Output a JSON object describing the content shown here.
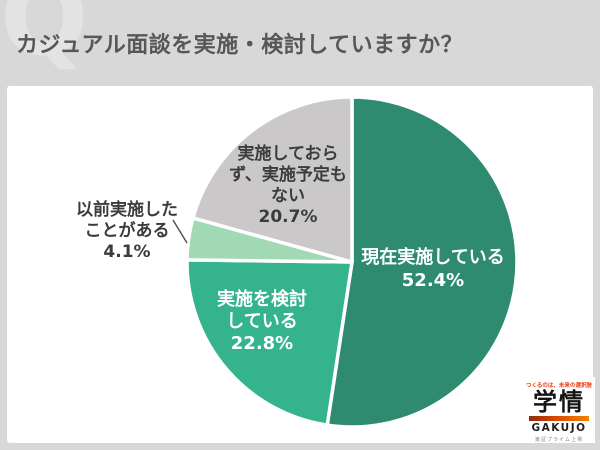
{
  "page": {
    "watermark": "Q",
    "title": "カジュアル面談を実施・検討していますか？"
  },
  "chart_data": {
    "type": "pie",
    "question": "カジュアル面談を実施・検討していますか？",
    "start_angle_deg": 0,
    "direction": "clockwise",
    "slice_border_color": "#FFFFFF",
    "slices": [
      {
        "label": "現在実施している",
        "value_pct": 52.4,
        "display": "現在実施している\n52.4%",
        "color": "#2E8B6F",
        "text_color": "#FFFFFF",
        "label_placement": "inside"
      },
      {
        "label": "実施を検討している",
        "value_pct": 22.8,
        "display": "実施を検討\nしている\n22.8%",
        "color": "#35B38C",
        "text_color": "#FFFFFF",
        "label_placement": "inside"
      },
      {
        "label": "以前実施したことがある",
        "value_pct": 4.1,
        "display": "以前実施した\nことがある\n4.1%",
        "color": "#A0D9B4",
        "text_color": "#3C3C3C",
        "label_placement": "outside"
      },
      {
        "label": "実施しておらず、実施予定もない",
        "value_pct": 20.7,
        "display": "実施しておら\nず、実施予定も\nない\n20.7%",
        "color": "#CAC8C8",
        "text_color": "#3C3C3C",
        "label_placement": "inside"
      }
    ]
  },
  "logo": {
    "tagline": "つくるのは、未来の選択肢",
    "name_jp": "学情",
    "name_en": "GAKUJO",
    "listing": "東証プライム上場"
  },
  "colors": {
    "background": "#D8D8D8",
    "watermark": "#E3E3E3",
    "title_text": "#575757",
    "panel": "#FFFFFF",
    "leader_line": "#555555",
    "logo_tagline": "#E8380D",
    "logo_accent_left": "#8F2B0E",
    "logo_accent_mid": "#D84A00",
    "logo_accent_right": "#F08300"
  }
}
